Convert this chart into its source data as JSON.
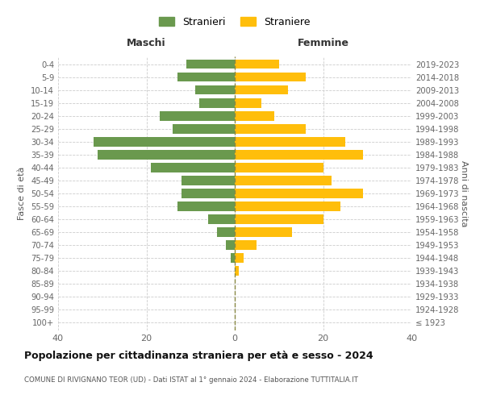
{
  "age_groups": [
    "100+",
    "95-99",
    "90-94",
    "85-89",
    "80-84",
    "75-79",
    "70-74",
    "65-69",
    "60-64",
    "55-59",
    "50-54",
    "45-49",
    "40-44",
    "35-39",
    "30-34",
    "25-29",
    "20-24",
    "15-19",
    "10-14",
    "5-9",
    "0-4"
  ],
  "birth_years": [
    "≤ 1923",
    "1924-1928",
    "1929-1933",
    "1934-1938",
    "1939-1943",
    "1944-1948",
    "1949-1953",
    "1954-1958",
    "1959-1963",
    "1964-1968",
    "1969-1973",
    "1974-1978",
    "1979-1983",
    "1984-1988",
    "1989-1993",
    "1994-1998",
    "1999-2003",
    "2004-2008",
    "2009-2013",
    "2014-2018",
    "2019-2023"
  ],
  "maschi": [
    0,
    0,
    0,
    0,
    0,
    1,
    2,
    4,
    6,
    13,
    12,
    12,
    19,
    31,
    32,
    14,
    17,
    8,
    9,
    13,
    11
  ],
  "femmine": [
    0,
    0,
    0,
    0,
    1,
    2,
    5,
    13,
    20,
    24,
    29,
    22,
    20,
    29,
    25,
    16,
    9,
    6,
    12,
    16,
    10
  ],
  "maschi_color": "#6a994e",
  "femmine_color": "#ffbe0b",
  "grid_color": "#cccccc",
  "zero_line_color": "#888844",
  "title": "Popolazione per cittadinanza straniera per età e sesso - 2024",
  "subtitle": "COMUNE DI RIVIGNANO TEOR (UD) - Dati ISTAT al 1° gennaio 2024 - Elaborazione TUTTITALIA.IT",
  "header_left": "Maschi",
  "header_right": "Femmine",
  "ylabel_left": "Fasce di età",
  "ylabel_right": "Anni di nascita",
  "legend_stranieri": "Stranieri",
  "legend_straniere": "Straniere",
  "xlim": 40,
  "xticks": [
    -40,
    -20,
    0,
    20,
    40
  ],
  "xtick_labels": [
    "40",
    "20",
    "0",
    "20",
    "40"
  ]
}
